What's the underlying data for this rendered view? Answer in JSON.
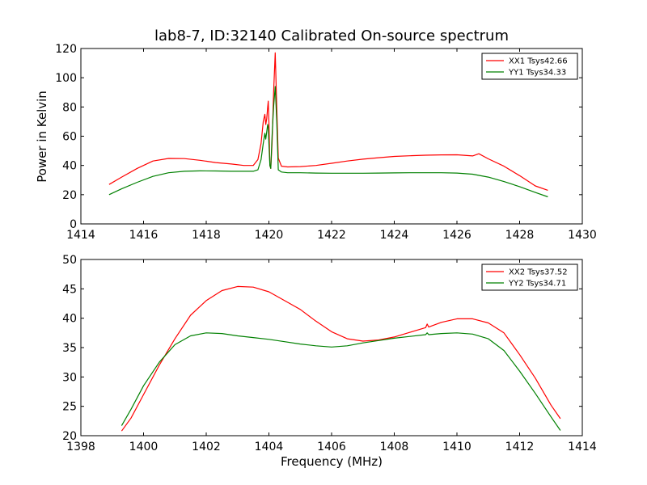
{
  "title": "lab8-7, ID:32140 Calibrated On-source spectrum",
  "chart_data": [
    {
      "type": "line",
      "ylabel": "Power in Kelvin",
      "xlabel": "",
      "xlim": [
        1414,
        1430
      ],
      "ylim": [
        0,
        120
      ],
      "xticks": [
        "1414",
        "1416",
        "1418",
        "1420",
        "1422",
        "1424",
        "1426",
        "1428",
        "1430"
      ],
      "yticks": [
        "0",
        "20",
        "40",
        "60",
        "80",
        "100",
        "120"
      ],
      "legend_position": "top-right",
      "series": [
        {
          "name": "XX1 Tsys42.66",
          "color": "#ff0000",
          "x": [
            1414.9,
            1415.3,
            1415.8,
            1416.3,
            1416.8,
            1417.3,
            1417.8,
            1418.3,
            1418.8,
            1419.2,
            1419.5,
            1419.65,
            1419.75,
            1419.82,
            1419.87,
            1419.9,
            1419.93,
            1419.96,
            1419.98,
            1420.0,
            1420.03,
            1420.06,
            1420.1,
            1420.15,
            1420.2,
            1420.25,
            1420.3,
            1420.4,
            1420.6,
            1421.0,
            1421.5,
            1422.0,
            1422.5,
            1423.0,
            1423.5,
            1424.0,
            1424.5,
            1425.0,
            1425.5,
            1426.0,
            1426.5,
            1426.7,
            1427.0,
            1427.5,
            1428.0,
            1428.5,
            1428.9
          ],
          "y": [
            27,
            32,
            38,
            43,
            44.8,
            44.7,
            43.5,
            42,
            41,
            40,
            40,
            44,
            55,
            70,
            75,
            68,
            72,
            80,
            84,
            70,
            40,
            38,
            55,
            90,
            117,
            80,
            45,
            39.5,
            39,
            39.2,
            40,
            41.5,
            43,
            44.3,
            45.3,
            46.2,
            46.6,
            47,
            47.2,
            47.3,
            46.5,
            48,
            44.5,
            39.5,
            33,
            26,
            23
          ]
        },
        {
          "name": "YY1 Tsys34.33",
          "color": "#008000",
          "x": [
            1414.9,
            1415.3,
            1415.8,
            1416.3,
            1416.8,
            1417.3,
            1417.8,
            1418.3,
            1418.8,
            1419.2,
            1419.5,
            1419.65,
            1419.75,
            1419.82,
            1419.87,
            1419.9,
            1419.93,
            1419.96,
            1419.98,
            1420.0,
            1420.03,
            1420.06,
            1420.1,
            1420.15,
            1420.2,
            1420.25,
            1420.3,
            1420.4,
            1420.6,
            1421.0,
            1421.5,
            1422.0,
            1422.5,
            1423.0,
            1423.5,
            1424.0,
            1424.5,
            1425.0,
            1425.5,
            1426.0,
            1426.5,
            1427.0,
            1427.5,
            1428.0,
            1428.5,
            1428.9
          ],
          "y": [
            20,
            24,
            28.5,
            32.5,
            35,
            36,
            36.3,
            36.2,
            36,
            36,
            36,
            37,
            44,
            55,
            62,
            58,
            63,
            68,
            66,
            55,
            40,
            38,
            60,
            80,
            94,
            70,
            37,
            35.5,
            35,
            35,
            34.8,
            34.7,
            34.7,
            34.7,
            34.8,
            34.9,
            35,
            35,
            35,
            34.8,
            34,
            32,
            29,
            25.5,
            21.5,
            18.5
          ]
        }
      ]
    },
    {
      "type": "line",
      "ylabel": "",
      "xlabel": "Frequency (MHz)",
      "xlim": [
        1398,
        1414
      ],
      "ylim": [
        20,
        50
      ],
      "xticks": [
        "1398",
        "1400",
        "1402",
        "1404",
        "1406",
        "1408",
        "1410",
        "1412",
        "1414"
      ],
      "yticks": [
        "20",
        "25",
        "30",
        "35",
        "40",
        "45",
        "50"
      ],
      "legend_position": "top-right",
      "series": [
        {
          "name": "XX2 Tsys37.52",
          "color": "#ff0000",
          "x": [
            1399.3,
            1399.6,
            1400.0,
            1400.5,
            1401.0,
            1401.5,
            1402.0,
            1402.5,
            1403.0,
            1403.5,
            1404.0,
            1404.5,
            1405.0,
            1405.5,
            1406.0,
            1406.5,
            1407.0,
            1407.5,
            1408.0,
            1408.5,
            1409.0,
            1409.05,
            1409.1,
            1409.5,
            1410.0,
            1410.5,
            1411.0,
            1411.5,
            1412.0,
            1412.5,
            1413.0,
            1413.3
          ],
          "y": [
            20.8,
            23,
            27,
            32,
            36.5,
            40.5,
            43,
            44.7,
            45.4,
            45.3,
            44.5,
            43,
            41.5,
            39.5,
            37.7,
            36.5,
            36.1,
            36.3,
            36.8,
            37.6,
            38.4,
            39,
            38.5,
            39.3,
            39.9,
            39.9,
            39.2,
            37.5,
            33.8,
            29.8,
            25.2,
            22.9
          ]
        },
        {
          "name": "YY2 Tsys34.71",
          "color": "#008000",
          "x": [
            1399.3,
            1399.6,
            1400.0,
            1400.5,
            1401.0,
            1401.5,
            1402.0,
            1402.5,
            1403.0,
            1403.5,
            1404.0,
            1404.5,
            1405.0,
            1405.5,
            1406.0,
            1406.5,
            1407.0,
            1407.5,
            1408.0,
            1408.5,
            1409.0,
            1409.05,
            1409.1,
            1409.5,
            1410.0,
            1410.5,
            1411.0,
            1411.5,
            1412.0,
            1412.5,
            1413.0,
            1413.3
          ],
          "y": [
            21.7,
            24.5,
            28.5,
            32.5,
            35.5,
            37,
            37.5,
            37.4,
            37,
            36.7,
            36.4,
            36,
            35.6,
            35.3,
            35.1,
            35.3,
            35.8,
            36.2,
            36.6,
            36.9,
            37.2,
            37.5,
            37.2,
            37.4,
            37.5,
            37.3,
            36.5,
            34.5,
            31,
            27.2,
            23.2,
            20.9
          ]
        }
      ]
    }
  ]
}
